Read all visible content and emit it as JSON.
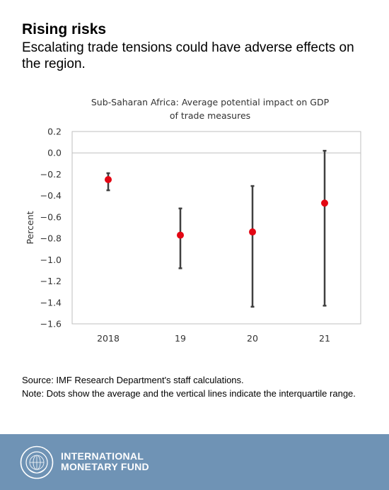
{
  "header": {
    "title": "Rising risks",
    "subtitle": "Escalating trade tensions could have adverse effects on the region."
  },
  "chart_data": {
    "type": "scatter",
    "title": "Sub-Saharan Africa: Average potential impact on GDP",
    "subtitle": "of trade measures",
    "xlabel": "",
    "ylabel": "Percent",
    "categories": [
      "2018",
      "19",
      "20",
      "21"
    ],
    "ylim": [
      -1.6,
      0.2
    ],
    "yticks": [
      0.2,
      0.0,
      -0.2,
      -0.4,
      -0.6,
      -0.8,
      -1.0,
      -1.2,
      -1.4,
      -1.6
    ],
    "ytick_labels": [
      "0.2",
      "0.0",
      "−0.2",
      "−0.4",
      "−0.6",
      "−0.8",
      "−1.0",
      "−1.2",
      "−1.4",
      "−1.6"
    ],
    "grid": false,
    "series": [
      {
        "average": [
          -0.25,
          -0.77,
          -0.74,
          -0.47
        ],
        "iqr_high": [
          -0.19,
          -0.52,
          -0.31,
          0.02
        ],
        "iqr_low": [
          -0.35,
          -1.08,
          -1.44,
          -1.43
        ],
        "dot_color": "#e30613",
        "line_color": "#404040"
      }
    ]
  },
  "notes": {
    "source": "Source: IMF Research Department's staff calculations.",
    "note": "Note: Dots show the average and the vertical lines indicate the interquartile range."
  },
  "footer": {
    "org_line1": "INTERNATIONAL",
    "org_line2": "MONETARY FUND",
    "background": "#6f93b5",
    "logo_icon": "imf-seal-icon"
  }
}
